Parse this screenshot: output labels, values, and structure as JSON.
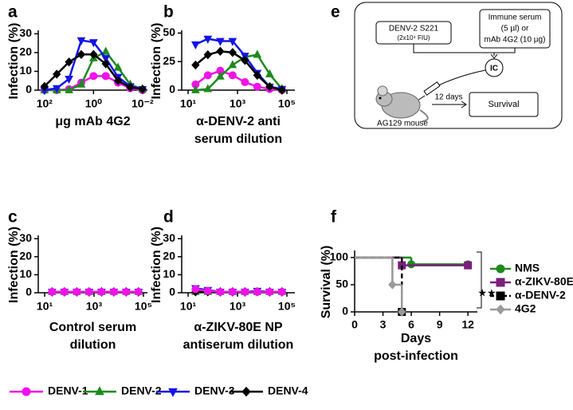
{
  "chart_data": [
    {
      "type": "line",
      "label": "a",
      "ylabel": "Infection (%)",
      "xlabel": [
        "μg mAb 4G2"
      ],
      "xscale": "log",
      "x": [
        100,
        31.6,
        10,
        3.16,
        1,
        0.316,
        0.1,
        0.0316,
        0.01
      ],
      "xlim": [
        180,
        0.0063
      ],
      "xticks": [
        {
          "value": 100,
          "label": "10²"
        },
        {
          "value": 1,
          "label": "10⁰"
        },
        {
          "value": 0.01,
          "label": "10⁻²"
        }
      ],
      "ylim": [
        0,
        31
      ],
      "yticks": [
        0,
        10,
        20,
        30
      ],
      "legend": "bottom",
      "series": [
        {
          "name": "DENV-1",
          "color": "#f012e8",
          "marker": "circle",
          "values": [
            0,
            0,
            0.5,
            4,
            7.5,
            7.5,
            4,
            1,
            0
          ]
        },
        {
          "name": "DENV-2",
          "color": "#1e8a1e",
          "marker": "triangle",
          "values": [
            0,
            0,
            0,
            3,
            17,
            20.5,
            12,
            3,
            0.5
          ]
        },
        {
          "name": "DENV-3",
          "color": "#1414e6",
          "marker": "triangle-down",
          "values": [
            0,
            1,
            6,
            26.5,
            25.5,
            17,
            7,
            2,
            0.5
          ]
        },
        {
          "name": "DENV-4",
          "color": "#000000",
          "marker": "diamond",
          "values": [
            2,
            8.5,
            15,
            19,
            19,
            14,
            5,
            1.5,
            0.5
          ]
        }
      ]
    },
    {
      "type": "line",
      "label": "b",
      "ylabel": "Infection (%)",
      "xlabel": [
        "α-DENV-2 anti",
        "serum dilution"
      ],
      "xscale": "log",
      "x": [
        20,
        63,
        200,
        632,
        2000,
        6325,
        20000,
        63246
      ],
      "xlim": [
        5.5,
        210000
      ],
      "xticks": [
        {
          "value": 10,
          "label": "10¹"
        },
        {
          "value": 1000,
          "label": "10³"
        },
        {
          "value": 100000,
          "label": "10⁵"
        }
      ],
      "ylim": [
        0,
        51
      ],
      "yticks": [
        0,
        25,
        50
      ],
      "series": [
        {
          "name": "DENV-1",
          "color": "#f012e8",
          "marker": "circle",
          "values": [
            5,
            13,
            17,
            13,
            7,
            3,
            1,
            0
          ]
        },
        {
          "name": "DENV-2",
          "color": "#1e8a1e",
          "marker": "triangle",
          "values": [
            0,
            1,
            12,
            22,
            29,
            31,
            14,
            1
          ]
        },
        {
          "name": "DENV-3",
          "color": "#1414e6",
          "marker": "triangle-down",
          "values": [
            40,
            45,
            43,
            43,
            30,
            15,
            3,
            1
          ]
        },
        {
          "name": "DENV-4",
          "color": "#000000",
          "marker": "diamond",
          "values": [
            22,
            31,
            34,
            33,
            26,
            13,
            3,
            0
          ]
        }
      ]
    },
    {
      "type": "line",
      "label": "c",
      "ylabel": "Infection (%)",
      "xlabel": [
        "Control serum",
        "dilution"
      ],
      "xscale": "log",
      "x": [
        20,
        63,
        200,
        632,
        2000,
        6325,
        20000,
        63246
      ],
      "xlim": [
        5.5,
        145000
      ],
      "xticks": [
        {
          "value": 10,
          "label": "10¹"
        },
        {
          "value": 1000,
          "label": "10³"
        },
        {
          "value": 100000,
          "label": "10⁵"
        }
      ],
      "ylim": [
        0,
        31
      ],
      "yticks": [
        0,
        10,
        20,
        30
      ],
      "series": [
        {
          "name": "DENV-2",
          "color": "#1e8a1e",
          "marker": "triangle",
          "values": [
            0.5,
            0.5,
            0.5,
            0.5,
            0.5,
            0.5,
            0.5,
            0.5
          ]
        },
        {
          "name": "DENV-3",
          "color": "#1414e6",
          "marker": "triangle-down",
          "values": [
            0.5,
            0.5,
            0.5,
            0.5,
            0.5,
            0.5,
            0.5,
            0.5
          ]
        },
        {
          "name": "DENV-4",
          "color": "#000000",
          "marker": "diamond",
          "values": [
            0.5,
            0.5,
            0.5,
            0.5,
            0.5,
            0.5,
            0.5,
            0.5
          ]
        },
        {
          "name": "DENV-1",
          "color": "#f012e8",
          "marker": "circle",
          "values": [
            0.5,
            0.5,
            0.5,
            0.5,
            0.5,
            0.5,
            0.5,
            0.5
          ]
        }
      ]
    },
    {
      "type": "line",
      "label": "d",
      "ylabel": "Infection (%)",
      "xlabel": [
        "α-ZIKV-80E NP",
        "antiserum dilution"
      ],
      "xscale": "log",
      "x": [
        20,
        63,
        200,
        632,
        2000,
        6325,
        20000,
        63246
      ],
      "xlim": [
        5.5,
        210000
      ],
      "xticks": [
        {
          "value": 10,
          "label": "10¹"
        },
        {
          "value": 1000,
          "label": "10³"
        },
        {
          "value": 100000,
          "label": "10⁵"
        }
      ],
      "ylim": [
        0,
        31
      ],
      "yticks": [
        0,
        10,
        20,
        30
      ],
      "series": [
        {
          "name": "DENV-2",
          "color": "#1e8a1e",
          "marker": "triangle",
          "values": [
            0.5,
            0.5,
            0.5,
            0.5,
            0.5,
            0.5,
            0.5,
            0.5
          ]
        },
        {
          "name": "DENV-3",
          "color": "#1414e6",
          "marker": "triangle-down",
          "values": [
            2.5,
            1.5,
            0.5,
            0.5,
            0.5,
            1,
            0.5,
            0.5
          ]
        },
        {
          "name": "DENV-4",
          "color": "#000000",
          "marker": "diamond",
          "values": [
            0.5,
            0.5,
            0.5,
            0.5,
            0.5,
            0.5,
            0.5,
            0.5
          ]
        },
        {
          "name": "DENV-1",
          "color": "#f012e8",
          "marker": "circle",
          "values": [
            2,
            1,
            0.5,
            0.5,
            0.5,
            0.5,
            0.5,
            0.5
          ]
        }
      ]
    },
    {
      "type": "step",
      "label": "f",
      "ylabel": "Survival (%)",
      "xlabel": [
        "Days",
        "post-infection"
      ],
      "xlim": [
        0,
        13
      ],
      "xticks": [
        0,
        3,
        6,
        9,
        12
      ],
      "ylim": [
        0,
        110
      ],
      "yticks": [
        0,
        50,
        100
      ],
      "legend": "right",
      "annotation": "★★",
      "series": [
        {
          "name": "NMS",
          "color": "#1e8a1e",
          "marker": "circle",
          "x": [
            0,
            6,
            12
          ],
          "values": [
            100,
            87.5,
            87.5
          ]
        },
        {
          "name": "α-ZIKV-80E",
          "color": "#7a1f7a",
          "marker": "square",
          "x": [
            0,
            5,
            12
          ],
          "values": [
            100,
            85.7,
            85.7
          ]
        },
        {
          "name": "α-DENV-2",
          "color": "#000000",
          "marker": "square",
          "dash": true,
          "x": [
            0,
            5
          ],
          "values": [
            100,
            0
          ]
        },
        {
          "name": "4G2",
          "color": "#999999",
          "marker": "diamond",
          "x": [
            0,
            4,
            5
          ],
          "values": [
            100,
            50,
            0
          ]
        }
      ]
    }
  ],
  "diagram": {
    "label": "e",
    "virus": [
      "DENV-2 S221",
      "(2x10⁴ FIU)"
    ],
    "serum": [
      "Immune serum",
      "(5 µl) or",
      "mAb 4G2 (10 µg)"
    ],
    "complex": "IC",
    "interval": "12 days",
    "outcome": "Survival",
    "host": "AG129 mouse"
  }
}
